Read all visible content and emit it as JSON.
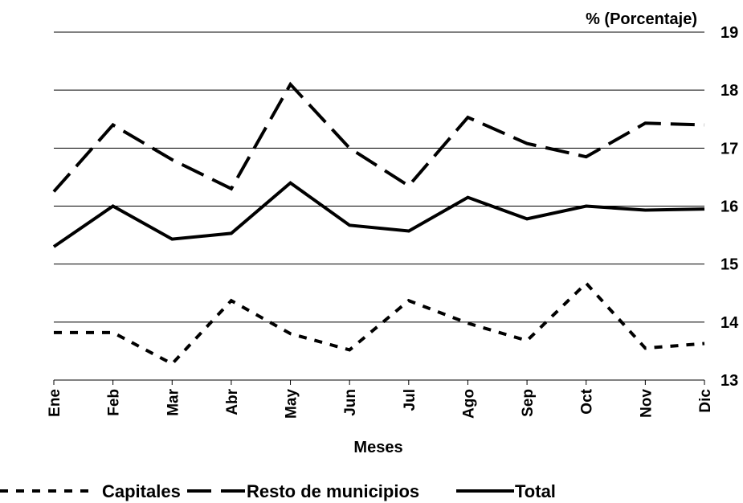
{
  "chart_data": {
    "type": "line",
    "ylabel": "% (Porcentaje)",
    "xlabel": "Meses",
    "categories": [
      "Ene",
      "Feb",
      "Mar",
      "Abr",
      "May",
      "Jun",
      "Jul",
      "Ago",
      "Sep",
      "Oct",
      "Nov",
      "Dic"
    ],
    "ylim": [
      13,
      19
    ],
    "yticks": [
      13,
      14,
      15,
      16,
      17,
      18,
      19
    ],
    "grid": true,
    "y_axis_side": "right",
    "legend_position": "bottom",
    "series": [
      {
        "name": "Capitales",
        "style": "short-dash",
        "color": "#000000",
        "values": [
          13.82,
          13.82,
          13.28,
          14.37,
          13.8,
          13.52,
          14.37,
          13.98,
          13.68,
          14.67,
          13.55,
          13.63
        ]
      },
      {
        "name": "Resto de municipios",
        "style": "long-dash",
        "color": "#000000",
        "values": [
          16.25,
          17.4,
          16.8,
          16.3,
          18.1,
          17.0,
          16.35,
          17.53,
          17.08,
          16.85,
          17.43,
          17.4
        ]
      },
      {
        "name": "Total",
        "style": "solid",
        "color": "#000000",
        "values": [
          15.3,
          16.0,
          15.43,
          15.53,
          16.4,
          15.67,
          15.57,
          16.15,
          15.78,
          16.0,
          15.93,
          15.95
        ]
      }
    ]
  }
}
